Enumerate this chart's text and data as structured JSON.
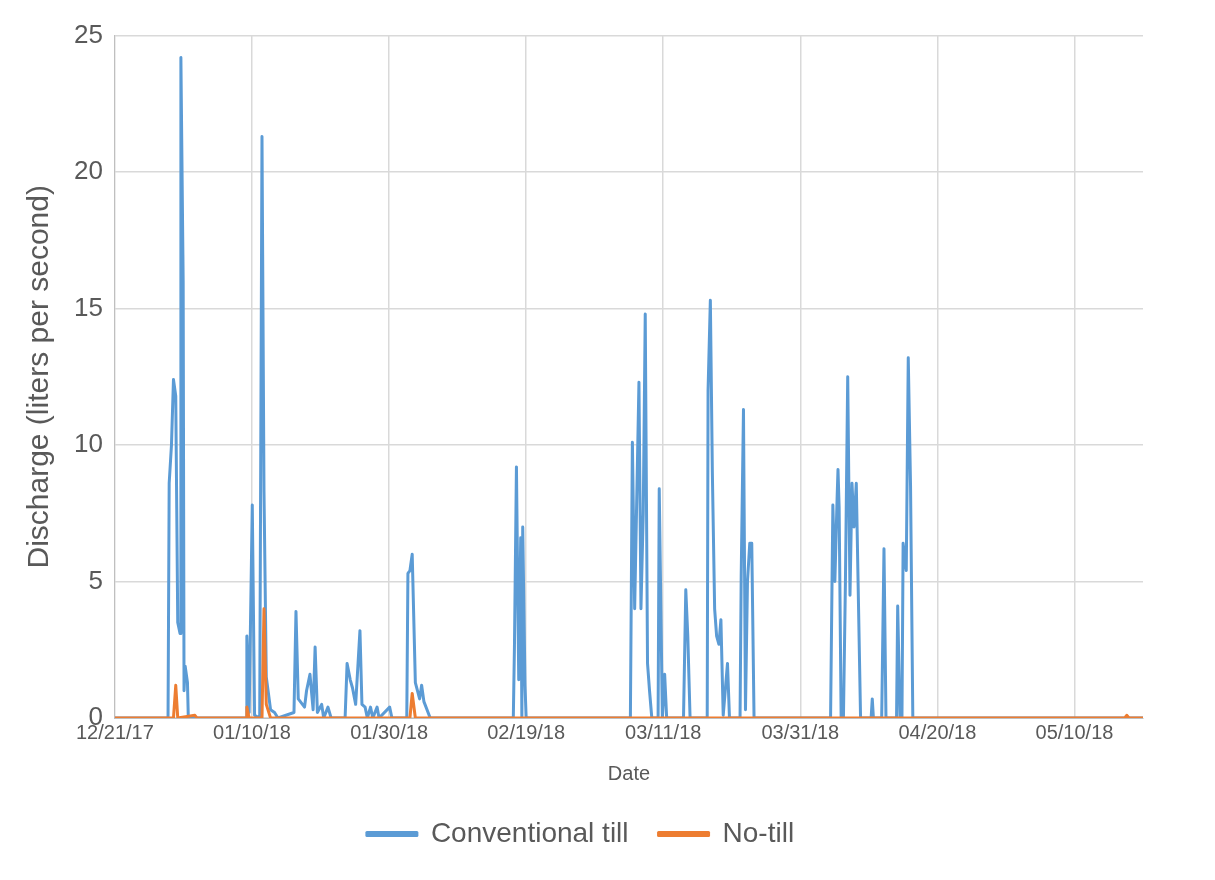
{
  "chart_data": {
    "type": "line",
    "xlabel": "Date",
    "ylabel": "Discharge (liters per second)",
    "xlim": [
      "2017-12-21",
      "2018-05-20"
    ],
    "xticks": [
      {
        "value": "2017-12-21",
        "label": "12/21/17"
      },
      {
        "value": "2018-01-10",
        "label": "01/10/18"
      },
      {
        "value": "2018-01-30",
        "label": "01/30/18"
      },
      {
        "value": "2018-02-19",
        "label": "02/19/18"
      },
      {
        "value": "2018-03-11",
        "label": "03/11/18"
      },
      {
        "value": "2018-03-31",
        "label": "03/31/18"
      },
      {
        "value": "2018-04-20",
        "label": "04/20/18"
      },
      {
        "value": "2018-05-10",
        "label": "05/10/18"
      }
    ],
    "ylim": [
      0,
      25
    ],
    "yticks": [
      0,
      5,
      10,
      15,
      20,
      25
    ],
    "grid": true,
    "legend": "bottom",
    "marker": "none",
    "line_style": "solid",
    "series": [
      {
        "name": "Conventional till",
        "color": "#5b9bd5",
        "x": [
          "2017-12-21",
          "2017-12-28T18:00",
          "2017-12-28T22:00",
          "2017-12-29T06:00",
          "2017-12-29T13:00",
          "2017-12-29T21:00",
          "2017-12-30T04:00",
          "2017-12-30T12:00",
          "2017-12-30T15:00",
          "2017-12-30T23:00",
          "2017-12-31T02:00",
          "2017-12-31T06:00",
          "2017-12-31T14:00",
          "2017-12-31T17:00",
          "2018-01-09T03:00",
          "2018-01-09T06:00",
          "2018-01-09T14:00",
          "2018-01-10T01:00",
          "2018-01-10T09:00",
          "2018-01-11T03:00",
          "2018-01-11T11:00",
          "2018-01-11T18:00",
          "2018-01-12T02:00",
          "2018-01-12T17:00",
          "2018-01-13T07:00",
          "2018-01-13T19:00",
          "2018-01-16T03:00",
          "2018-01-16T10:00",
          "2018-01-16T18:00",
          "2018-01-17T16:00",
          "2018-01-17T23:00",
          "2018-01-18T11:00",
          "2018-01-18T22:00",
          "2018-01-19T05:00",
          "2018-01-19T13:00",
          "2018-01-20T04:00",
          "2018-01-20T11:00",
          "2018-01-21T02:00",
          "2018-01-21T13:00",
          "2018-01-23T14:00",
          "2018-01-23T21:00",
          "2018-01-24T08:00",
          "2018-01-24T16:00",
          "2018-01-25T03:00",
          "2018-01-25T18:00",
          "2018-01-26T01:00",
          "2018-01-26T12:00",
          "2018-01-26T20:00",
          "2018-01-27T07:00",
          "2018-01-27T15:00",
          "2018-01-28T06:00",
          "2018-01-28T13:00",
          "2018-01-30T02:00",
          "2018-01-30T10:00",
          "2018-02-01T14:00",
          "2018-02-01T18:00",
          "2018-02-02T01:00",
          "2018-02-02T09:00",
          "2018-02-02T20:00",
          "2018-02-03T11:00",
          "2018-02-03T18:00",
          "2018-02-04T02:00",
          "2018-02-05T00:00",
          "2018-02-17T03:00",
          "2018-02-17T07:00",
          "2018-02-17T14:00",
          "2018-02-17T22:00",
          "2018-02-18T05:00",
          "2018-02-18T09:00",
          "2018-02-18T12:00",
          "2018-02-18T20:00",
          "2018-02-19T00:00",
          "2018-03-06T05:00",
          "2018-03-06T12:00",
          "2018-03-06T20:00",
          "2018-03-07T11:00",
          "2018-03-07T18:00",
          "2018-03-08T02:00",
          "2018-03-08T09:00",
          "2018-03-08T17:00",
          "2018-03-09T00:00",
          "2018-03-09T08:00",
          "2018-03-10T06:00",
          "2018-03-10T10:00",
          "2018-03-10T21:00",
          "2018-03-11T05:00",
          "2018-03-11T12:00",
          "2018-03-13T23:00",
          "2018-03-14T07:00",
          "2018-03-14T14:00",
          "2018-03-14T22:00",
          "2018-03-17T10:00",
          "2018-03-17T13:00",
          "2018-03-17T21:00",
          "2018-03-18T04:00",
          "2018-03-18T12:00",
          "2018-03-18T19:00",
          "2018-03-19T03:00",
          "2018-03-19T10:00",
          "2018-03-19T18:00",
          "2018-03-20T09:00",
          "2018-03-20T16:00",
          "2018-03-22T05:00",
          "2018-03-22T09:00",
          "2018-03-22T17:00",
          "2018-03-23T00:00",
          "2018-03-23T07:00",
          "2018-03-23T15:00",
          "2018-03-23T22:00",
          "2018-03-24T06:00",
          "2018-04-04T10:00",
          "2018-04-04T18:00",
          "2018-04-05T01:00",
          "2018-04-05T09:00",
          "2018-04-05T12:00",
          "2018-04-05T16:00",
          "2018-04-05T23:00",
          "2018-04-06T07:00",
          "2018-04-06T14:00",
          "2018-04-06T22:00",
          "2018-04-07T06:00",
          "2018-04-07T13:00",
          "2018-04-07T20:00",
          "2018-04-08T04:00",
          "2018-04-08T19:00",
          "2018-04-10T08:00",
          "2018-04-10T12:00",
          "2018-04-10T16:00",
          "2018-04-11T21:00",
          "2018-04-12T05:00",
          "2018-04-12T12:00",
          "2018-04-14T01:00",
          "2018-04-14T05:00",
          "2018-04-14T13:00",
          "2018-04-14T20:00",
          "2018-04-15T00:00",
          "2018-04-15T11:00",
          "2018-04-15T18:00",
          "2018-04-16T02:00",
          "2018-04-16T10:00",
          "2018-05-20"
        ],
        "values": [
          0,
          0,
          8.6,
          10,
          12.4,
          11.8,
          3.5,
          3.1,
          24.2,
          16,
          1,
          1.9,
          1.3,
          0,
          0,
          3,
          0.2,
          7.8,
          0.1,
          0,
          21.3,
          8.3,
          1.5,
          0.3,
          0.2,
          0,
          0.2,
          3.9,
          0.7,
          0.4,
          1,
          1.6,
          0.3,
          2.6,
          0.2,
          0.5,
          0,
          0.4,
          0,
          0,
          2,
          1.4,
          1.1,
          0.5,
          3.2,
          0.5,
          0.4,
          0,
          0.4,
          0,
          0.4,
          0,
          0.4,
          0,
          0,
          5.3,
          5.4,
          6,
          1.3,
          0.7,
          1.2,
          0.6,
          0,
          0,
          2.6,
          9.2,
          1.4,
          6.6,
          0,
          7,
          1.2,
          0,
          0,
          10.1,
          4,
          12.3,
          4,
          7.5,
          14.8,
          2,
          1,
          0,
          0,
          8.4,
          0,
          1.6,
          0,
          0,
          4.7,
          3,
          0,
          0,
          12,
          15.3,
          9,
          4,
          3,
          2.7,
          3.6,
          0.1,
          2,
          0,
          0,
          5.2,
          11.3,
          0.3,
          5,
          6.4,
          6.4,
          0,
          0,
          7.8,
          5,
          8.1,
          9.1,
          7.7,
          0,
          0,
          5,
          12.5,
          4.5,
          8.6,
          7,
          8.6,
          0,
          0,
          0.7,
          0,
          0,
          6.2,
          0,
          0,
          4.1,
          0,
          0,
          6.4,
          5.4,
          13.2,
          8.5,
          0,
          0
        ]
      },
      {
        "name": "No-till",
        "color": "#ed7d31",
        "x": [
          "2017-12-21",
          "2017-12-29T13:00",
          "2017-12-29T21:00",
          "2017-12-30T04:00",
          "2018-01-01T16:00",
          "2018-01-01T23:00",
          "2018-01-09T03:00",
          "2018-01-09T06:00",
          "2018-01-09T14:00",
          "2018-01-11T11:00",
          "2018-01-11T18:00",
          "2018-01-12T02:00",
          "2018-01-12T17:00",
          "2018-02-02T01:00",
          "2018-02-02T09:00",
          "2018-02-02T20:00",
          "2018-05-17T08:00",
          "2018-05-17T15:00",
          "2018-05-17T23:00",
          "2018-05-20"
        ],
        "values": [
          0,
          0,
          1.2,
          0,
          0.1,
          0,
          0,
          0.4,
          0,
          0,
          4,
          0.5,
          0,
          0,
          0.9,
          0,
          0,
          0.1,
          0,
          0
        ]
      }
    ]
  }
}
